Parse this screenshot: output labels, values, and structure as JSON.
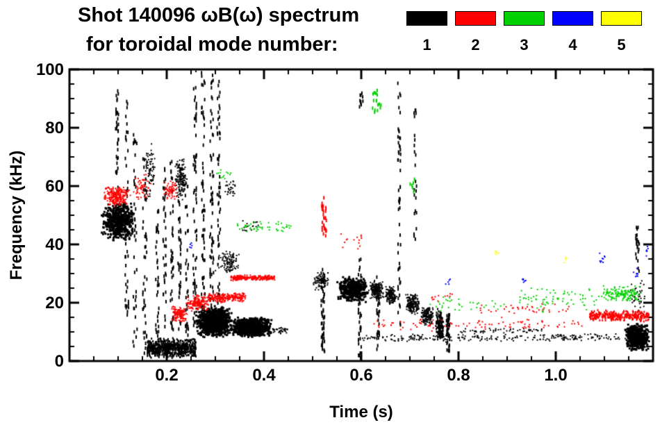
{
  "chart_data": {
    "type": "scatter",
    "title": "Shot 140096 ωB(ω) spectrum",
    "subtitle": "for toroidal mode number:",
    "xlabel": "Time (s)",
    "ylabel": "Frequency (kHz)",
    "xlim": [
      0,
      1.2
    ],
    "ylim": [
      0,
      100
    ],
    "x_major_ticks": [
      0.2,
      0.4,
      0.6,
      0.8,
      1.0
    ],
    "x_tick_labels": [
      "0.2",
      "0.4",
      "0.6",
      "0.8",
      "1.0"
    ],
    "x_minor_step": 0.05,
    "y_major_ticks": [
      0,
      20,
      40,
      60,
      80,
      100
    ],
    "y_tick_labels": [
      "0",
      "20",
      "40",
      "60",
      "80",
      "100"
    ],
    "y_minor_step": 5,
    "grid": false,
    "legend": {
      "position": "top-right",
      "entries": [
        {
          "label": "1",
          "color": "#000000"
        },
        {
          "label": "2",
          "color": "#ff0000"
        },
        {
          "label": "3",
          "color": "#00d000"
        },
        {
          "label": "4",
          "color": "#0000ff"
        },
        {
          "label": "5",
          "color": "#ffff00"
        }
      ]
    },
    "series": [
      {
        "name": "n=1",
        "color": "#000000",
        "clusters": [
          {
            "t": [
              0.065,
              0.135
            ],
            "f": [
              41,
              55
            ],
            "n": 520,
            "s": "blob",
            "mw": 3,
            "mh": 3
          },
          {
            "t": [
              0.093,
              0.103
            ],
            "f": [
              58,
              93
            ],
            "n": 35,
            "s": "streak"
          },
          {
            "t": [
              0.112,
              0.124
            ],
            "f": [
              15,
              90
            ],
            "n": 45,
            "s": "streak"
          },
          {
            "t": [
              0.128,
              0.142
            ],
            "f": [
              5,
              78
            ],
            "n": 40,
            "s": "streak"
          },
          {
            "t": [
              0.148,
              0.162
            ],
            "f": [
              0,
              70
            ],
            "n": 50,
            "s": "streak"
          },
          {
            "t": [
              0.155,
              0.178
            ],
            "f": [
              55,
              76
            ],
            "n": 70,
            "s": "blob"
          },
          {
            "t": [
              0.16,
              0.26
            ],
            "f": [
              1,
              8
            ],
            "n": 650,
            "s": "band",
            "mw": 2,
            "mh": 3
          },
          {
            "t": [
              0.175,
              0.186
            ],
            "f": [
              8,
              55
            ],
            "n": 35,
            "s": "streak"
          },
          {
            "t": [
              0.19,
              0.201
            ],
            "f": [
              10,
              66
            ],
            "n": 38,
            "s": "streak"
          },
          {
            "t": [
              0.205,
              0.216
            ],
            "f": [
              10,
              70
            ],
            "n": 40,
            "s": "streak"
          },
          {
            "t": [
              0.215,
              0.242
            ],
            "f": [
              55,
              70
            ],
            "n": 160,
            "s": "blob"
          },
          {
            "t": [
              0.221,
              0.232
            ],
            "f": [
              10,
              55
            ],
            "n": 35,
            "s": "streak"
          },
          {
            "t": [
              0.236,
              0.247
            ],
            "f": [
              8,
              62
            ],
            "n": 35,
            "s": "streak"
          },
          {
            "t": [
              0.252,
              0.264
            ],
            "f": [
              10,
              100
            ],
            "n": 65,
            "s": "streak"
          },
          {
            "t": [
              0.269,
              0.281
            ],
            "f": [
              10,
              100
            ],
            "n": 65,
            "s": "streak"
          },
          {
            "t": [
              0.286,
              0.299
            ],
            "f": [
              12,
              100
            ],
            "n": 70,
            "s": "streak"
          },
          {
            "t": [
              0.301,
              0.313
            ],
            "f": [
              15,
              96
            ],
            "n": 55,
            "s": "streak"
          },
          {
            "t": [
              0.258,
              0.335
            ],
            "f": [
              8,
              19
            ],
            "n": 850,
            "s": "blob",
            "mw": 3,
            "mh": 3
          },
          {
            "t": [
              0.33,
              0.418
            ],
            "f": [
              8,
              15
            ],
            "n": 750,
            "s": "blob",
            "mw": 3,
            "mh": 3
          },
          {
            "t": [
              0.3,
              0.352
            ],
            "f": [
              30,
              38
            ],
            "n": 110,
            "s": "blob"
          },
          {
            "t": [
              0.318,
              0.345
            ],
            "f": [
              55,
              63
            ],
            "n": 30,
            "s": "blob"
          },
          {
            "t": [
              0.418,
              0.45
            ],
            "f": [
              9,
              12
            ],
            "n": 35,
            "s": "band"
          },
          {
            "t": [
              0.355,
              0.395
            ],
            "f": [
              44,
              49
            ],
            "n": 18,
            "s": "band"
          },
          {
            "t": [
              0.515,
              0.528
            ],
            "f": [
              3,
              32
            ],
            "n": 55,
            "s": "streak"
          },
          {
            "t": [
              0.5,
              0.537
            ],
            "f": [
              24,
              31
            ],
            "n": 85,
            "s": "blob"
          },
          {
            "t": [
              0.55,
              0.615
            ],
            "f": [
              20,
              29
            ],
            "n": 380,
            "s": "blob",
            "mw": 3,
            "mh": 3
          },
          {
            "t": [
              0.592,
              0.602
            ],
            "f": [
              0,
              36
            ],
            "n": 38,
            "s": "streak"
          },
          {
            "t": [
              0.594,
              0.606
            ],
            "f": [
              86,
              92
            ],
            "n": 10,
            "s": "streak"
          },
          {
            "t": [
              0.615,
              0.647
            ],
            "f": [
              21,
              28
            ],
            "n": 170,
            "s": "blob"
          },
          {
            "t": [
              0.63,
              0.64
            ],
            "f": [
              4,
              30
            ],
            "n": 30,
            "s": "streak"
          },
          {
            "t": [
              0.648,
              0.674
            ],
            "f": [
              19,
              26
            ],
            "n": 150,
            "s": "blob"
          },
          {
            "t": [
              0.673,
              0.683
            ],
            "f": [
              5,
              96
            ],
            "n": 55,
            "s": "streak"
          },
          {
            "t": [
              0.69,
              0.722
            ],
            "f": [
              16,
              23
            ],
            "n": 190,
            "s": "blob"
          },
          {
            "t": [
              0.706,
              0.716
            ],
            "f": [
              40,
              88
            ],
            "n": 25,
            "s": "streak"
          },
          {
            "t": [
              0.722,
              0.75
            ],
            "f": [
              12,
              19
            ],
            "n": 160,
            "s": "blob"
          },
          {
            "t": [
              0.752,
              0.77
            ],
            "f": [
              6,
              18
            ],
            "n": 150,
            "s": "blob",
            "mh": 3
          },
          {
            "t": [
              0.773,
              0.784
            ],
            "f": [
              3,
              16
            ],
            "n": 45,
            "s": "streak"
          },
          {
            "t": [
              0.6,
              1.145
            ],
            "f": [
              6.5,
              9.5
            ],
            "n": 240,
            "s": "band"
          },
          {
            "t": [
              0.8,
              0.975
            ],
            "f": [
              9.5,
              11.5
            ],
            "n": 55,
            "s": "band"
          },
          {
            "t": [
              1.142,
              1.192
            ],
            "f": [
              3.5,
              13
            ],
            "n": 520,
            "s": "blob",
            "mw": 3,
            "mh": 3
          },
          {
            "t": [
              1.15,
              1.19
            ],
            "f": [
              14,
              30
            ],
            "n": 40,
            "s": "blob"
          },
          {
            "t": [
              1.162,
              1.174
            ],
            "f": [
              30,
              46
            ],
            "n": 22,
            "s": "streak"
          }
        ]
      },
      {
        "name": "n=2",
        "color": "#ff0000",
        "clusters": [
          {
            "t": [
              0.068,
              0.127
            ],
            "f": [
              53,
              60
            ],
            "n": 240,
            "s": "blob"
          },
          {
            "t": [
              0.13,
              0.168
            ],
            "f": [
              55,
              64
            ],
            "n": 55,
            "s": "blob"
          },
          {
            "t": [
              0.19,
              0.228
            ],
            "f": [
              55,
              62
            ],
            "n": 60,
            "s": "blob"
          },
          {
            "t": [
              0.208,
              0.245
            ],
            "f": [
              13,
              19
            ],
            "n": 120,
            "s": "blob"
          },
          {
            "t": [
              0.24,
              0.29
            ],
            "f": [
              17,
              23
            ],
            "n": 160,
            "s": "blob"
          },
          {
            "t": [
              0.285,
              0.362
            ],
            "f": [
              20,
              23.5
            ],
            "n": 230,
            "s": "band"
          },
          {
            "t": [
              0.332,
              0.422
            ],
            "f": [
              27.5,
              29.5
            ],
            "n": 230,
            "s": "band"
          },
          {
            "t": [
              0.515,
              0.532
            ],
            "f": [
              42,
              56
            ],
            "n": 28,
            "s": "streak"
          },
          {
            "t": [
              0.558,
              0.602
            ],
            "f": [
              38,
              44
            ],
            "n": 14,
            "s": "band"
          },
          {
            "t": [
              0.62,
              1.06
            ],
            "f": [
              10,
              15
            ],
            "n": 95,
            "s": "band"
          },
          {
            "t": [
              0.84,
              1.03
            ],
            "f": [
              16,
              20
            ],
            "n": 40,
            "s": "band"
          },
          {
            "t": [
              1.07,
              1.192
            ],
            "f": [
              13.5,
              17.5
            ],
            "n": 280,
            "s": "band",
            "mh": 3
          },
          {
            "t": [
              0.74,
              0.79
            ],
            "f": [
              20,
              24
            ],
            "n": 12,
            "s": "band"
          }
        ]
      },
      {
        "name": "n=3",
        "color": "#00d000",
        "clusters": [
          {
            "t": [
              0.3,
              0.332
            ],
            "f": [
              62,
              66
            ],
            "n": 12,
            "s": "band"
          },
          {
            "t": [
              0.345,
              0.458
            ],
            "f": [
              44,
              48
            ],
            "n": 48,
            "s": "band"
          },
          {
            "t": [
              0.616,
              0.648
            ],
            "f": [
              85,
              93
            ],
            "n": 16,
            "s": "streak"
          },
          {
            "t": [
              0.695,
              0.715
            ],
            "f": [
              58,
              64
            ],
            "n": 6,
            "s": "streak"
          },
          {
            "t": [
              0.74,
              0.905
            ],
            "f": [
              17,
              22
            ],
            "n": 35,
            "s": "band"
          },
          {
            "t": [
              0.92,
              1.09
            ],
            "f": [
              16,
              26
            ],
            "n": 75,
            "s": "band"
          },
          {
            "t": [
              1.093,
              1.178
            ],
            "f": [
              20,
              26
            ],
            "n": 140,
            "s": "blob"
          }
        ]
      },
      {
        "name": "n=4",
        "color": "#0000ff",
        "clusters": [
          {
            "t": [
              0.243,
              0.254
            ],
            "f": [
              38,
              41
            ],
            "n": 5,
            "s": "blob"
          },
          {
            "t": [
              0.77,
              0.786
            ],
            "f": [
              26,
              29
            ],
            "n": 5,
            "s": "blob"
          },
          {
            "t": [
              0.925,
              0.942
            ],
            "f": [
              26,
              29
            ],
            "n": 6,
            "s": "blob"
          },
          {
            "t": [
              1.088,
              1.106
            ],
            "f": [
              33,
              37
            ],
            "n": 9,
            "s": "blob"
          },
          {
            "t": [
              1.158,
              1.176
            ],
            "f": [
              28,
              32
            ],
            "n": 8,
            "s": "blob"
          },
          {
            "t": [
              1.178,
              1.192
            ],
            "f": [
              36,
              40
            ],
            "n": 6,
            "s": "blob"
          }
        ]
      },
      {
        "name": "n=5",
        "color": "#ffff00",
        "clusters": [
          {
            "t": [
              0.872,
              0.884
            ],
            "f": [
              35.5,
              38
            ],
            "n": 5,
            "s": "blob"
          },
          {
            "t": [
              1.014,
              1.028
            ],
            "f": [
              33,
              36
            ],
            "n": 4,
            "s": "blob"
          }
        ]
      }
    ]
  }
}
